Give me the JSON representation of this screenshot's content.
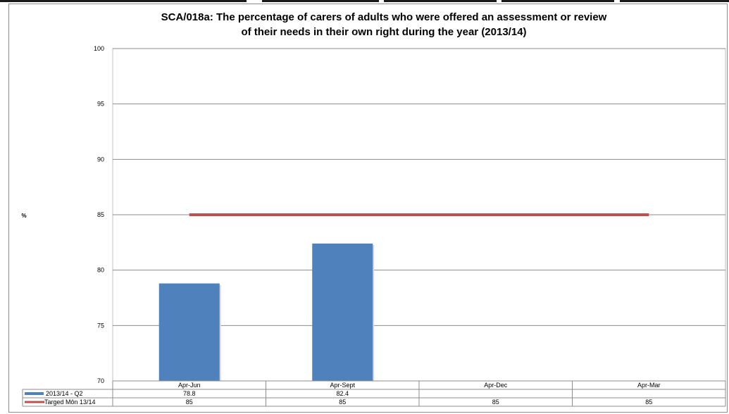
{
  "chart_data": {
    "type": "bar",
    "title": "SCA/018a: The percentage of carers of adults who were offered an assessment or review\nof their needs in their own right during the year (2013/14)",
    "ylabel": "%",
    "xlabel": "",
    "ylim": [
      70,
      100
    ],
    "yticks": [
      70,
      75,
      80,
      85,
      90,
      95,
      100
    ],
    "categories": [
      "Apr-Jun",
      "Apr-Sept",
      "Apr-Dec",
      "Apr-Mar"
    ],
    "grid": true,
    "legend": "data-table",
    "series": [
      {
        "name": "2013/14 - Q2",
        "kind": "bar",
        "color": "#4f81bd",
        "values": [
          78.8,
          82.4,
          null,
          null
        ]
      },
      {
        "name": "Targed Môn 13/14",
        "kind": "line",
        "color": "#c0504d",
        "values": [
          85,
          85,
          85,
          85
        ]
      }
    ],
    "table_rows": [
      [
        "78.8",
        "82.4",
        "",
        ""
      ],
      [
        "85",
        "85",
        "85",
        "85"
      ]
    ]
  }
}
